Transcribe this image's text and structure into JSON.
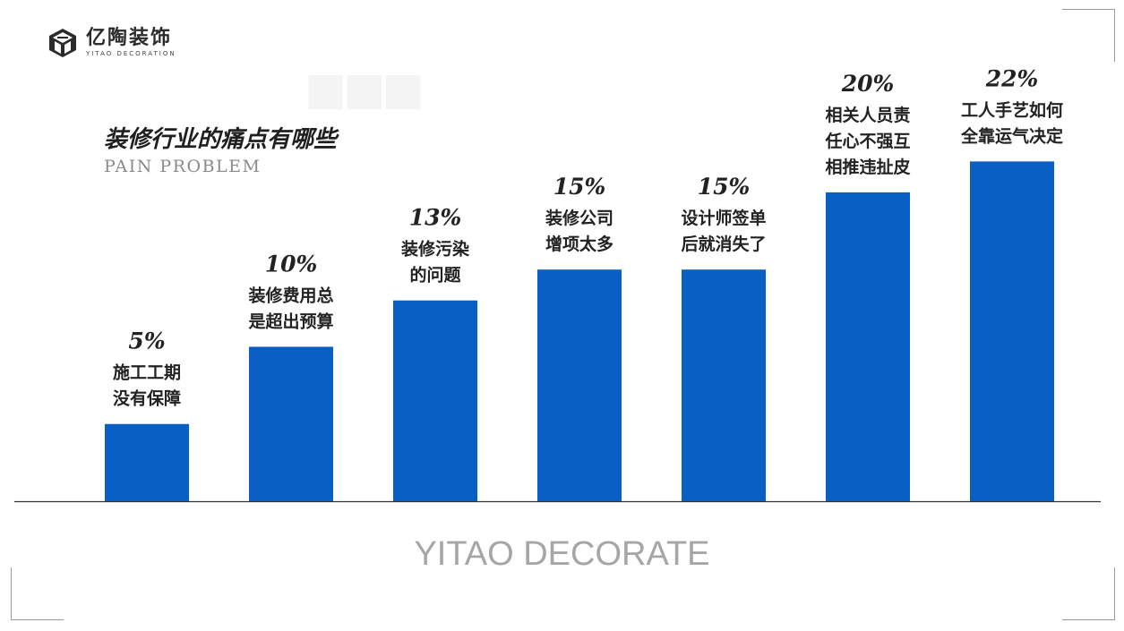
{
  "brand": {
    "name_cn": "亿陶装饰",
    "name_en": "YITAO DECORATION"
  },
  "slide": {
    "title_cn": "装修行业的痛点有哪些",
    "title_en": "PAIN PROBLEM",
    "footer": "YITAO DECORATE"
  },
  "colors": {
    "bar": "#0a5fc4",
    "axis": "#333333",
    "label": "#222222"
  },
  "chart_data": {
    "type": "bar",
    "categories": [
      [
        "施工工期",
        "没有保障"
      ],
      [
        "装修费用总",
        "是超出预算"
      ],
      [
        "装修污染",
        "的问题"
      ],
      [
        "装修公司",
        "增项太多"
      ],
      [
        "设计师签单",
        "后就消失了"
      ],
      [
        "相关人员责",
        "任心不强互",
        "相推违扯皮"
      ],
      [
        "工人手艺如何",
        "全靠运气决定"
      ]
    ],
    "values": [
      5,
      10,
      13,
      15,
      15,
      20,
      22
    ],
    "value_labels": [
      "5%",
      "10%",
      "13%",
      "15%",
      "15%",
      "20%",
      "22%"
    ],
    "unit": "%",
    "ylim": [
      0,
      25.5
    ],
    "grid": false,
    "legend": "none"
  }
}
